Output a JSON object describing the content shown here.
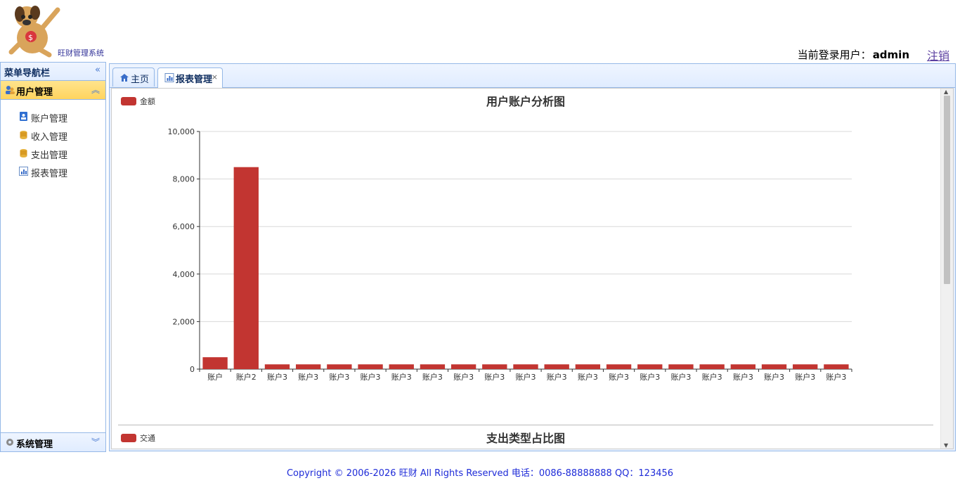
{
  "header": {
    "app_name": "旺财管理系统",
    "user_label": "当前登录用户：",
    "username": "admin",
    "logout": "注销"
  },
  "sidebar": {
    "title": "菜单导航栏",
    "sections": [
      {
        "label": "用户管理",
        "expanded": true,
        "items": [
          {
            "label": "账户管理",
            "icon": "user-card-icon"
          },
          {
            "label": "收入管理",
            "icon": "coins-icon"
          },
          {
            "label": "支出管理",
            "icon": "coins-icon"
          },
          {
            "label": "报表管理",
            "icon": "report-icon"
          }
        ]
      },
      {
        "label": "系统管理",
        "expanded": false,
        "items": []
      }
    ]
  },
  "tabs": [
    {
      "label": "主页",
      "icon": "home-icon",
      "closable": false,
      "active": false
    },
    {
      "label": "报表管理",
      "icon": "report-icon",
      "closable": true,
      "active": true
    }
  ],
  "chart_data": [
    {
      "type": "bar",
      "title": "用户账户分析图",
      "legend": [
        "金额"
      ],
      "legend_position": "top-left",
      "series_color": "#c23531",
      "categories": [
        "账户",
        "账户2",
        "账户3",
        "账户3",
        "账户3",
        "账户3",
        "账户3",
        "账户3",
        "账户3",
        "账户3",
        "账户3",
        "账户3",
        "账户3",
        "账户3",
        "账户3",
        "账户3",
        "账户3",
        "账户3",
        "账户3",
        "账户3",
        "账户3"
      ],
      "series": [
        {
          "name": "金额",
          "values": [
            500,
            8500,
            200,
            200,
            200,
            200,
            200,
            200,
            200,
            200,
            200,
            200,
            200,
            200,
            200,
            200,
            200,
            200,
            200,
            200,
            200
          ]
        }
      ],
      "yticks": [
        "0",
        "2,000",
        "4,000",
        "6,000",
        "8,000",
        "10,000"
      ],
      "ylim": [
        0,
        10000
      ],
      "grid": true
    },
    {
      "type": "pie",
      "title": "支出类型占比图",
      "legend": [
        "交通"
      ],
      "legend_position": "top-left",
      "series_color": "#c23531"
    }
  ],
  "footer": {
    "text": "Copyright © 2006-2026 旺财 All Rights Reserved 电话：0086-88888888 QQ：123456"
  }
}
